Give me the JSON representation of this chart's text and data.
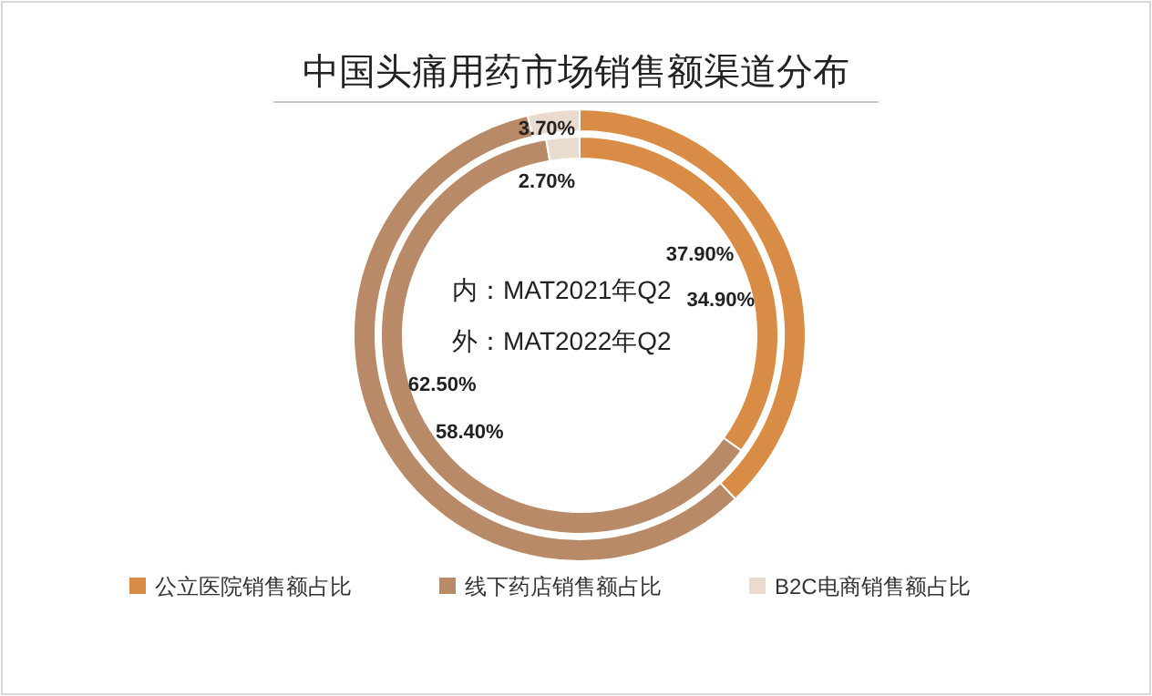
{
  "chart_data": {
    "type": "donut",
    "title": "中国头痛用药市场销售额渠道分布",
    "categories": [
      "公立医院销售额占比",
      "线下药店销售额占比",
      "B2C电商销售额占比"
    ],
    "colors": [
      "#d98c45",
      "#b98a68",
      "#eadbcf"
    ],
    "series": [
      {
        "values": [
          34.9,
          62.5,
          2.7
        ],
        "value_labels": [
          "34.90%",
          "62.50%",
          "2.70%"
        ]
      },
      {
        "values": [
          37.9,
          58.4,
          3.7
        ],
        "value_labels": [
          "37.90%",
          "58.40%",
          "3.70%"
        ]
      }
    ],
    "annotations": [
      "内：MAT2021年Q2",
      "外：MAT2022年Q2"
    ],
    "legend": "bottom"
  }
}
